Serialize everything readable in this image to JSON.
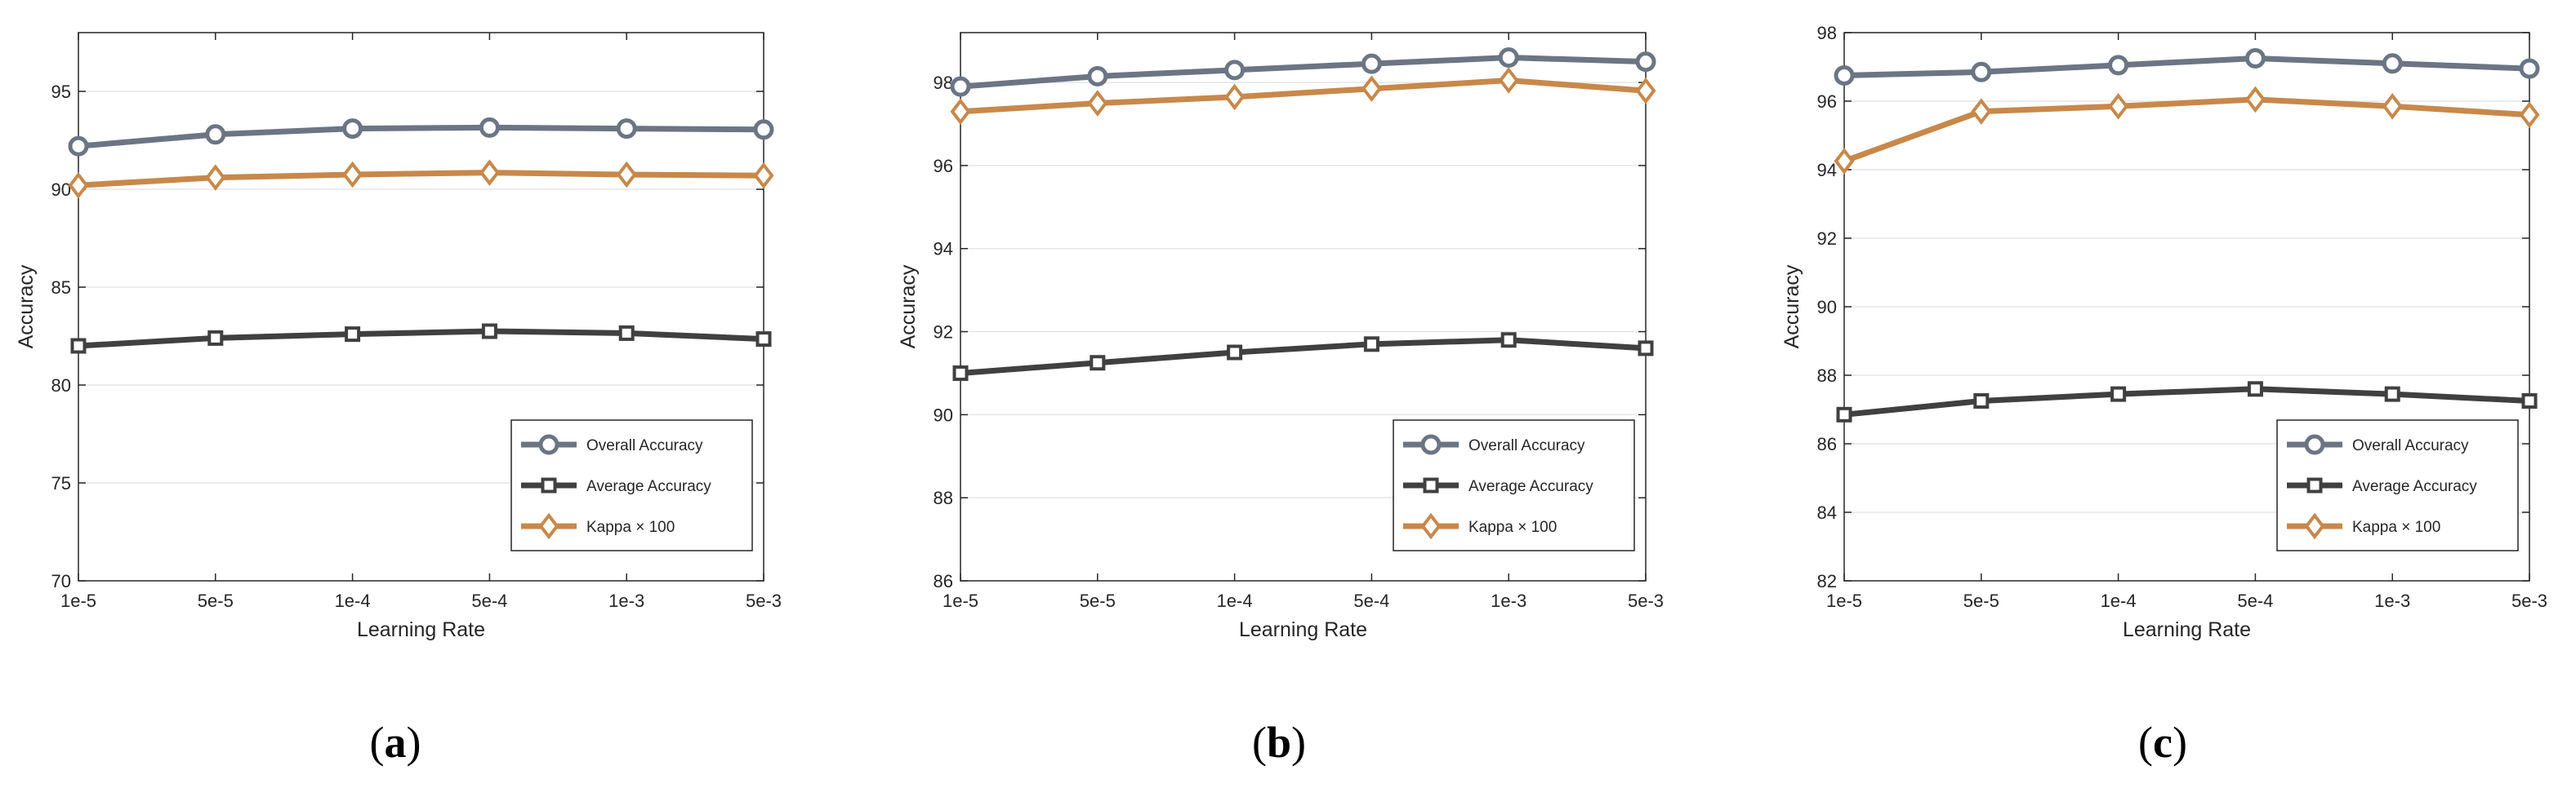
{
  "chart_data": [
    {
      "type": "line",
      "caption_letter": "a",
      "xlabel": "Learning Rate",
      "ylabel": "Accuracy",
      "categories": [
        "1e-5",
        "5e-5",
        "1e-4",
        "5e-4",
        "1e-3",
        "5e-3"
      ],
      "ylim": [
        70,
        98
      ],
      "yticks": [
        70,
        75,
        80,
        85,
        90,
        95
      ],
      "grid": true,
      "legend_position": "bottom-right",
      "series": [
        {
          "name": "Overall Accuracy",
          "marker": "circle",
          "color": "#6b7584",
          "values": [
            92.2,
            92.8,
            93.1,
            93.15,
            93.1,
            93.05
          ]
        },
        {
          "name": "Average Accuracy",
          "marker": "square",
          "color": "#404040",
          "values": [
            82.0,
            82.4,
            82.6,
            82.75,
            82.65,
            82.35
          ]
        },
        {
          "name": "Kappa × 100",
          "marker": "diamond",
          "color": "#c8884a",
          "values": [
            90.2,
            90.6,
            90.75,
            90.85,
            90.75,
            90.7
          ]
        }
      ]
    },
    {
      "type": "line",
      "caption_letter": "b",
      "xlabel": "Learning Rate",
      "ylabel": "Accuracy",
      "categories": [
        "1e-5",
        "5e-5",
        "1e-4",
        "5e-4",
        "1e-3",
        "5e-3"
      ],
      "ylim": [
        86,
        99.2
      ],
      "yticks": [
        86,
        88,
        90,
        92,
        94,
        96,
        98
      ],
      "grid": true,
      "legend_position": "bottom-right",
      "series": [
        {
          "name": "Overall Accuracy",
          "marker": "circle",
          "color": "#6b7584",
          "values": [
            97.9,
            98.15,
            98.3,
            98.45,
            98.6,
            98.5
          ]
        },
        {
          "name": "Average Accuracy",
          "marker": "square",
          "color": "#404040",
          "values": [
            91.0,
            91.25,
            91.5,
            91.7,
            91.8,
            91.6
          ]
        },
        {
          "name": "Kappa × 100",
          "marker": "diamond",
          "color": "#c8884a",
          "values": [
            97.3,
            97.5,
            97.65,
            97.85,
            98.05,
            97.8
          ]
        }
      ]
    },
    {
      "type": "line",
      "caption_letter": "c",
      "xlabel": "Learning Rate",
      "ylabel": "Accuracy",
      "categories": [
        "1e-5",
        "5e-5",
        "1e-4",
        "5e-4",
        "1e-3",
        "5e-3"
      ],
      "ylim": [
        82,
        98
      ],
      "yticks": [
        82,
        84,
        86,
        88,
        90,
        92,
        94,
        96,
        98
      ],
      "grid": true,
      "legend_position": "bottom-right",
      "series": [
        {
          "name": "Overall Accuracy",
          "marker": "circle",
          "color": "#6b7584",
          "values": [
            96.75,
            96.85,
            97.05,
            97.25,
            97.1,
            96.95
          ]
        },
        {
          "name": "Average Accuracy",
          "marker": "square",
          "color": "#404040",
          "values": [
            86.85,
            87.25,
            87.45,
            87.6,
            87.45,
            87.25
          ]
        },
        {
          "name": "Kappa × 100",
          "marker": "diamond",
          "color": "#c8884a",
          "values": [
            94.25,
            95.7,
            95.85,
            96.05,
            95.85,
            95.6
          ]
        }
      ]
    }
  ]
}
